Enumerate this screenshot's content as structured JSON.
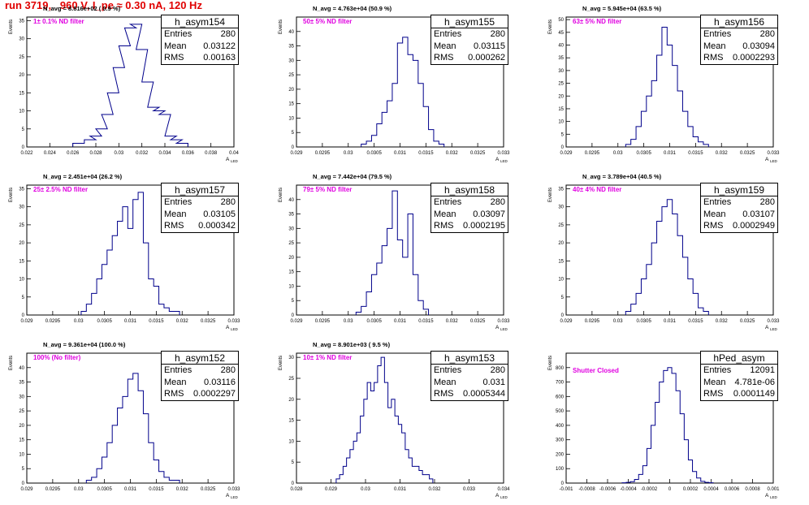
{
  "title": "run 3719,   960 V, I_pe ≈ 0.30 nA, 120 Hz",
  "stat_labels": {
    "entries": "Entries",
    "mean": "Mean",
    "rms": "RMS"
  },
  "ylabel": "Events",
  "xlabel": "A",
  "xlabel_sub": "LED",
  "colors": {
    "hist": "#00008b",
    "note": "#e000e0",
    "title": "#e00000"
  },
  "panels": [
    {
      "id": "h_asym154",
      "navg": "N_avg = 8.816e+02 ( 0.9 %)",
      "note": "1± 0.1% ND filter",
      "entries": "280",
      "mean": "0.03122",
      "rms": "0.00163"
    },
    {
      "id": "h_asym155",
      "navg": "N_avg = 4.763e+04 (50.9 %)",
      "note": "50± 5% ND filter",
      "entries": "280",
      "mean": "0.03115",
      "rms": "0.000262"
    },
    {
      "id": "h_asym156",
      "navg": "N_avg = 5.945e+04 (63.5 %)",
      "note": "63± 5% ND filter",
      "entries": "280",
      "mean": "0.03094",
      "rms": "0.0002293"
    },
    {
      "id": "h_asym157",
      "navg": "N_avg = 2.451e+04 (26.2 %)",
      "note": "25± 2.5% ND filter",
      "entries": "280",
      "mean": "0.03105",
      "rms": "0.000342"
    },
    {
      "id": "h_asym158",
      "navg": "N_avg = 7.442e+04 (79.5 %)",
      "note": "79± 5% ND filter",
      "entries": "280",
      "mean": "0.03097",
      "rms": "0.0002195"
    },
    {
      "id": "h_asym159",
      "navg": "N_avg = 3.789e+04 (40.5 %)",
      "note": "40± 4% ND filter",
      "entries": "280",
      "mean": "0.03107",
      "rms": "0.0002949"
    },
    {
      "id": "h_asym152",
      "navg": "N_avg = 9.361e+04 (100.0 %)",
      "note": "100% (No filter)",
      "entries": "280",
      "mean": "0.03116",
      "rms": "0.0002297"
    },
    {
      "id": "h_asym153",
      "navg": "N_avg = 8.901e+03 ( 9.5 %)",
      "note": "10± 1% ND filter",
      "entries": "280",
      "mean": "0.031",
      "rms": "0.0005344"
    },
    {
      "id": "hPed_asym",
      "navg": "",
      "note": "Shutter Closed",
      "entries": "12091",
      "mean": "4.781e-06",
      "rms": "0.0001149"
    }
  ],
  "chart_data": [
    {
      "type": "bar",
      "name": "h_asym154",
      "xlim": [
        0.022,
        0.04
      ],
      "xticks": [
        "0.022",
        "0.024",
        "0.026",
        "0.028",
        "0.03",
        "0.032",
        "0.034",
        "0.036",
        "0.038",
        "0.04"
      ],
      "ylim": [
        0,
        36
      ],
      "yticks": [
        "0",
        "5",
        "10",
        "15",
        "20",
        "25",
        "30",
        "35"
      ],
      "x": [
        0.0265,
        0.0275,
        0.028,
        0.0285,
        0.029,
        0.0295,
        0.03,
        0.0305,
        0.031,
        0.0315,
        0.032,
        0.0325,
        0.033,
        0.0335,
        0.034,
        0.0345,
        0.035,
        0.0355
      ],
      "values": [
        1,
        2,
        3,
        5,
        9,
        15,
        22,
        28,
        33,
        34,
        27,
        18,
        11,
        10,
        9,
        3,
        2,
        1
      ]
    },
    {
      "type": "bar",
      "name": "h_asym155",
      "xlim": [
        0.029,
        0.033
      ],
      "xticks": [
        "0.029",
        "0.0295",
        "0.03",
        "0.0305",
        "0.031",
        "0.0315",
        "0.032",
        "0.0325",
        "0.033"
      ],
      "ylim": [
        0,
        45
      ],
      "yticks": [
        "0",
        "5",
        "10",
        "15",
        "20",
        "25",
        "30",
        "35",
        "40"
      ],
      "x": [
        0.0303,
        0.0304,
        0.0305,
        0.0306,
        0.0307,
        0.0308,
        0.0309,
        0.031,
        0.0311,
        0.0312,
        0.0313,
        0.0314,
        0.0315,
        0.0316,
        0.0317,
        0.0318
      ],
      "values": [
        1,
        2,
        4,
        8,
        12,
        16,
        22,
        36,
        38,
        32,
        30,
        22,
        14,
        6,
        2,
        1
      ]
    },
    {
      "type": "bar",
      "name": "h_asym156",
      "xlim": [
        0.029,
        0.033
      ],
      "xticks": [
        "0.029",
        "0.0295",
        "0.03",
        "0.0305",
        "0.031",
        "0.0315",
        "0.032",
        "0.0325",
        "0.033"
      ],
      "ylim": [
        0,
        51
      ],
      "yticks": [
        "0",
        "5",
        "10",
        "15",
        "20",
        "25",
        "30",
        "35",
        "40",
        "45",
        "50"
      ],
      "x": [
        0.0302,
        0.0303,
        0.0304,
        0.0305,
        0.0306,
        0.0307,
        0.0308,
        0.0309,
        0.031,
        0.0311,
        0.0312,
        0.0313,
        0.0314,
        0.0315,
        0.0316,
        0.0317
      ],
      "values": [
        1,
        3,
        8,
        14,
        20,
        26,
        36,
        47,
        40,
        32,
        22,
        14,
        8,
        4,
        2,
        1
      ]
    },
    {
      "type": "bar",
      "name": "h_asym157",
      "xlim": [
        0.029,
        0.033
      ],
      "xticks": [
        "0.029",
        "0.0295",
        "0.03",
        "0.0305",
        "0.031",
        "0.0315",
        "0.032",
        "0.0325",
        "0.033"
      ],
      "ylim": [
        0,
        36
      ],
      "yticks": [
        "0",
        "5",
        "10",
        "15",
        "20",
        "25",
        "30",
        "35"
      ],
      "x": [
        0.0301,
        0.0302,
        0.0303,
        0.0304,
        0.0305,
        0.0306,
        0.0307,
        0.0308,
        0.0309,
        0.031,
        0.0311,
        0.0312,
        0.0313,
        0.0314,
        0.0315,
        0.0316,
        0.0317,
        0.0318,
        0.0319
      ],
      "values": [
        1,
        3,
        6,
        10,
        14,
        18,
        22,
        26,
        30,
        24,
        32,
        34,
        20,
        10,
        8,
        3,
        2,
        1,
        1
      ]
    },
    {
      "type": "bar",
      "name": "h_asym158",
      "xlim": [
        0.029,
        0.033
      ],
      "xticks": [
        "0.029",
        "0.0295",
        "0.03",
        "0.0305",
        "0.031",
        "0.0315",
        "0.032",
        "0.0325",
        "0.033"
      ],
      "ylim": [
        0,
        45
      ],
      "yticks": [
        "0",
        "5",
        "10",
        "15",
        "20",
        "25",
        "30",
        "35",
        "40"
      ],
      "x": [
        0.0302,
        0.0303,
        0.0304,
        0.0305,
        0.0306,
        0.0307,
        0.0308,
        0.0309,
        0.031,
        0.0311,
        0.0312,
        0.0313,
        0.0314,
        0.0315
      ],
      "values": [
        1,
        3,
        8,
        14,
        18,
        24,
        30,
        43,
        26,
        20,
        35,
        14,
        5,
        2
      ]
    },
    {
      "type": "bar",
      "name": "h_asym159",
      "xlim": [
        0.029,
        0.033
      ],
      "xticks": [
        "0.029",
        "0.0295",
        "0.03",
        "0.0305",
        "0.031",
        "0.0315",
        "0.032",
        "0.0325",
        "0.033"
      ],
      "ylim": [
        0,
        36
      ],
      "yticks": [
        "0",
        "5",
        "10",
        "15",
        "20",
        "25",
        "30",
        "35"
      ],
      "x": [
        0.0302,
        0.0303,
        0.0304,
        0.0305,
        0.0306,
        0.0307,
        0.0308,
        0.0309,
        0.031,
        0.0311,
        0.0312,
        0.0313,
        0.0314,
        0.0315,
        0.0316,
        0.0317
      ],
      "values": [
        1,
        3,
        6,
        10,
        14,
        20,
        26,
        30,
        32,
        28,
        22,
        16,
        10,
        6,
        2,
        1
      ]
    },
    {
      "type": "bar",
      "name": "h_asym152",
      "xlim": [
        0.029,
        0.033
      ],
      "xticks": [
        "0.029",
        "0.0295",
        "0.03",
        "0.0305",
        "0.031",
        "0.0315",
        "0.032",
        "0.0325",
        "0.033"
      ],
      "ylim": [
        0,
        45
      ],
      "yticks": [
        "0",
        "5",
        "10",
        "15",
        "20",
        "25",
        "30",
        "35",
        "40"
      ],
      "x": [
        0.0302,
        0.0303,
        0.0304,
        0.0305,
        0.0306,
        0.0307,
        0.0308,
        0.0309,
        0.031,
        0.0311,
        0.0312,
        0.0313,
        0.0314,
        0.0315,
        0.0316,
        0.0317,
        0.0318,
        0.0319
      ],
      "values": [
        1,
        2,
        5,
        9,
        14,
        20,
        26,
        30,
        36,
        38,
        32,
        24,
        14,
        8,
        4,
        2,
        1,
        1
      ]
    },
    {
      "type": "bar",
      "name": "h_asym153",
      "xlim": [
        0.028,
        0.034
      ],
      "xticks": [
        "0.028",
        "0.029",
        "0.03",
        "0.031",
        "0.032",
        "0.033",
        "0.034"
      ],
      "ylim": [
        0,
        31
      ],
      "yticks": [
        "0",
        "5",
        "10",
        "15",
        "20",
        "25",
        "30"
      ],
      "x": [
        0.0292,
        0.0293,
        0.0294,
        0.0295,
        0.0296,
        0.0297,
        0.0298,
        0.0299,
        0.03,
        0.0301,
        0.0302,
        0.0303,
        0.0304,
        0.0305,
        0.0306,
        0.0307,
        0.0308,
        0.0309,
        0.031,
        0.0311,
        0.0312,
        0.0313,
        0.0314,
        0.0315,
        0.0316,
        0.0317,
        0.0318,
        0.0319
      ],
      "values": [
        1,
        2,
        4,
        6,
        8,
        10,
        12,
        16,
        20,
        24,
        22,
        24,
        28,
        30,
        24,
        18,
        20,
        16,
        14,
        12,
        8,
        6,
        4,
        4,
        3,
        2,
        2,
        1
      ]
    },
    {
      "type": "bar",
      "name": "hPed_asym",
      "xlim": [
        -0.001,
        0.001
      ],
      "xticks": [
        "-0.001",
        "-0.0008",
        "-0.0006",
        "-0.0004",
        "-0.0002",
        "0",
        "0.0002",
        "0.0004",
        "0.0006",
        "0.0008",
        "0.001"
      ],
      "ylim": [
        0,
        900
      ],
      "yticks": [
        "0",
        "100",
        "200",
        "300",
        "400",
        "500",
        "600",
        "700",
        "800"
      ],
      "x": [
        -0.00044,
        -0.0004,
        -0.00036,
        -0.00032,
        -0.00028,
        -0.00024,
        -0.0002,
        -0.00016,
        -0.00012,
        -8e-05,
        -4e-05,
        0,
        4e-05,
        8e-05,
        0.00012,
        0.00016,
        0.0002,
        0.00024,
        0.00028,
        0.00032,
        0.00036,
        0.0004
      ],
      "values": [
        2,
        5,
        10,
        25,
        60,
        120,
        240,
        400,
        560,
        700,
        780,
        800,
        760,
        640,
        480,
        300,
        160,
        80,
        35,
        12,
        5,
        2
      ]
    }
  ]
}
